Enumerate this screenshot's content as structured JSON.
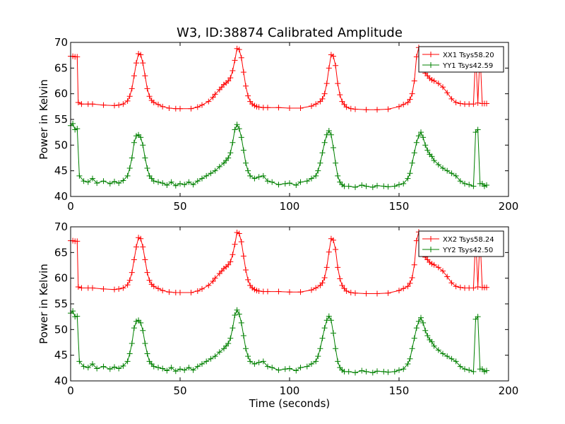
{
  "figure": {
    "title": "W3, ID:38874 Calibrated Amplitude"
  },
  "chart_data": [
    {
      "type": "line",
      "title": "W3, ID:38874 Calibrated Amplitude",
      "xlabel": "",
      "ylabel": "Power in Kelvin",
      "xlim": [
        0,
        200
      ],
      "ylim": [
        40,
        70
      ],
      "xticks": [
        "0",
        "50",
        "100",
        "150",
        "200"
      ],
      "yticks": [
        "40",
        "45",
        "50",
        "55",
        "60",
        "65",
        "70"
      ],
      "grid": false,
      "legend_position": "top-right",
      "marker": "+",
      "series": [
        {
          "name": "XX1 Tsys58.20",
          "color": "#ff0000",
          "x": [
            0,
            1,
            2,
            3,
            3.5,
            5,
            8,
            10,
            15,
            20,
            22,
            24,
            26,
            27,
            28,
            29,
            30,
            31,
            32,
            33,
            34,
            35,
            36,
            37,
            38,
            40,
            42,
            45,
            48,
            50,
            55,
            58,
            60,
            63,
            65,
            66,
            68,
            69,
            70,
            71,
            72,
            73,
            74,
            75,
            76,
            77,
            78,
            79,
            80,
            81,
            82,
            83,
            84,
            85,
            86,
            88,
            90,
            95,
            100,
            105,
            110,
            112,
            114,
            115,
            116,
            117,
            118,
            119,
            120,
            121,
            122,
            123,
            124,
            125,
            126,
            128,
            130,
            135,
            140,
            145,
            150,
            152,
            154,
            155,
            156,
            157,
            158,
            159,
            160,
            161,
            162,
            163,
            164,
            165,
            166,
            168,
            170,
            172,
            174,
            176,
            178,
            180,
            182,
            184,
            185,
            186,
            187,
            188,
            189,
            190
          ],
          "values": [
            67.3,
            67.3,
            67.2,
            67.2,
            58.3,
            58.0,
            58.0,
            58.0,
            57.8,
            57.7,
            57.8,
            58.0,
            58.6,
            59.5,
            61.0,
            63.5,
            66.0,
            67.8,
            67.6,
            66.0,
            63.5,
            61.0,
            59.5,
            58.7,
            58.3,
            57.9,
            57.5,
            57.2,
            57.1,
            57.1,
            57.1,
            57.4,
            57.8,
            58.5,
            59.3,
            59.9,
            60.8,
            61.3,
            61.8,
            62.1,
            62.5,
            63.1,
            64.5,
            66.5,
            68.8,
            68.6,
            67.0,
            64.2,
            61.5,
            59.6,
            58.5,
            58.0,
            57.7,
            57.5,
            57.4,
            57.3,
            57.3,
            57.3,
            57.2,
            57.2,
            57.6,
            58.0,
            58.5,
            59.0,
            60.0,
            62.0,
            65.0,
            67.6,
            67.3,
            65.5,
            62.0,
            59.8,
            58.5,
            57.9,
            57.4,
            57.1,
            57.0,
            56.9,
            56.9,
            57.0,
            57.5,
            57.9,
            58.3,
            58.9,
            60.0,
            62.5,
            67.2,
            69.0,
            67.5,
            65.2,
            64.0,
            63.5,
            63.0,
            62.7,
            62.5,
            62.0,
            61.3,
            60.2,
            59.0,
            58.3,
            58.1,
            58.0,
            58.0,
            58.0,
            68.0,
            58.2,
            68.0,
            58.1,
            58.1,
            58.1
          ]
        },
        {
          "name": "YY1 Tsys42.59",
          "color": "#008000",
          "x": [
            0,
            1,
            2,
            3,
            4,
            6,
            8,
            10,
            12,
            15,
            18,
            20,
            22,
            24,
            26,
            27,
            28,
            29,
            30,
            31,
            32,
            33,
            34,
            35,
            36,
            37,
            38,
            40,
            42,
            44,
            46,
            48,
            50,
            52,
            54,
            56,
            58,
            60,
            62,
            64,
            66,
            68,
            70,
            71,
            72,
            73,
            74,
            75,
            76,
            77,
            78,
            79,
            80,
            81,
            82,
            84,
            86,
            88,
            90,
            92,
            95,
            98,
            100,
            103,
            105,
            108,
            110,
            112,
            113,
            114,
            115,
            116,
            117,
            118,
            119,
            120,
            121,
            122,
            123,
            124,
            125,
            127,
            130,
            133,
            135,
            138,
            140,
            143,
            145,
            148,
            150,
            152,
            154,
            155,
            156,
            157,
            158,
            159,
            160,
            161,
            162,
            163,
            164,
            165,
            166,
            168,
            170,
            172,
            174,
            176,
            178,
            180,
            182,
            184,
            185,
            186,
            187,
            188,
            189,
            190
          ],
          "values": [
            53.8,
            54.2,
            53.0,
            53.2,
            44.0,
            43.0,
            42.8,
            43.5,
            42.6,
            43.0,
            42.5,
            42.9,
            42.6,
            43.1,
            44.0,
            45.5,
            47.5,
            50.5,
            51.8,
            52.0,
            51.5,
            50.0,
            47.5,
            45.5,
            44.0,
            43.5,
            43.0,
            42.8,
            42.6,
            42.2,
            42.8,
            42.1,
            42.5,
            42.3,
            42.8,
            42.3,
            43.0,
            43.5,
            44.0,
            44.5,
            45.0,
            45.8,
            46.5,
            47.0,
            47.5,
            48.5,
            50.5,
            53.0,
            54.0,
            53.2,
            51.5,
            49.0,
            46.5,
            45.0,
            44.0,
            43.5,
            43.8,
            44.0,
            43.0,
            42.8,
            42.3,
            42.5,
            42.6,
            42.2,
            42.8,
            43.0,
            43.5,
            44.0,
            45.0,
            46.5,
            48.5,
            50.5,
            52.0,
            52.8,
            52.0,
            49.5,
            46.5,
            44.0,
            42.8,
            42.3,
            42.0,
            42.0,
            41.8,
            42.2,
            42.0,
            41.8,
            42.1,
            42.0,
            41.9,
            42.0,
            42.3,
            42.5,
            43.5,
            44.5,
            46.5,
            48.5,
            50.5,
            51.8,
            52.5,
            51.5,
            50.0,
            49.0,
            48.2,
            47.8,
            47.0,
            46.2,
            45.5,
            45.0,
            44.5,
            44.0,
            43.0,
            42.5,
            42.3,
            42.0,
            52.5,
            53.0,
            42.5,
            42.5,
            42.0,
            42.2
          ]
        }
      ]
    },
    {
      "type": "line",
      "title": "",
      "xlabel": "Time (seconds)",
      "ylabel": "Power in Kelvin",
      "xlim": [
        0,
        200
      ],
      "ylim": [
        40,
        70
      ],
      "xticks": [
        "0",
        "50",
        "100",
        "150",
        "200"
      ],
      "yticks": [
        "40",
        "45",
        "50",
        "55",
        "60",
        "65",
        "70"
      ],
      "grid": false,
      "legend_position": "top-right",
      "marker": "+",
      "series": [
        {
          "name": "XX2 Tsys58.24",
          "color": "#ff0000",
          "x": [
            0,
            1,
            2,
            3,
            3.5,
            5,
            8,
            10,
            15,
            20,
            22,
            24,
            26,
            27,
            28,
            29,
            30,
            31,
            32,
            33,
            34,
            35,
            36,
            37,
            38,
            40,
            42,
            45,
            48,
            50,
            55,
            58,
            60,
            63,
            65,
            66,
            68,
            69,
            70,
            71,
            72,
            73,
            74,
            75,
            76,
            77,
            78,
            79,
            80,
            81,
            82,
            83,
            84,
            85,
            86,
            88,
            90,
            95,
            100,
            105,
            110,
            112,
            114,
            115,
            116,
            117,
            118,
            119,
            120,
            121,
            122,
            123,
            124,
            125,
            126,
            128,
            130,
            135,
            140,
            145,
            150,
            152,
            154,
            155,
            156,
            157,
            158,
            159,
            160,
            161,
            162,
            163,
            164,
            165,
            166,
            168,
            170,
            172,
            174,
            176,
            178,
            180,
            182,
            184,
            185,
            186,
            187,
            188,
            189,
            190
          ],
          "values": [
            67.3,
            67.3,
            67.2,
            67.2,
            58.3,
            58.1,
            58.1,
            58.1,
            57.9,
            57.8,
            57.9,
            58.1,
            58.7,
            59.6,
            61.1,
            63.6,
            66.1,
            67.9,
            67.7,
            66.1,
            63.6,
            61.1,
            59.6,
            58.8,
            58.4,
            58.0,
            57.6,
            57.3,
            57.2,
            57.2,
            57.2,
            57.5,
            57.9,
            58.6,
            59.4,
            60.0,
            60.9,
            61.4,
            61.9,
            62.2,
            62.6,
            63.2,
            64.6,
            66.6,
            68.9,
            68.7,
            67.1,
            64.3,
            61.6,
            59.7,
            58.6,
            58.1,
            57.8,
            57.6,
            57.5,
            57.4,
            57.4,
            57.4,
            57.3,
            57.3,
            57.7,
            58.1,
            58.6,
            59.1,
            60.1,
            62.1,
            65.1,
            67.7,
            67.4,
            65.6,
            62.1,
            59.9,
            58.6,
            58.0,
            57.5,
            57.2,
            57.1,
            57.0,
            57.0,
            57.1,
            57.6,
            58.0,
            58.4,
            59.0,
            60.1,
            62.6,
            67.3,
            69.0,
            67.6,
            65.3,
            64.1,
            63.6,
            63.1,
            62.8,
            62.6,
            62.1,
            61.4,
            60.3,
            59.1,
            58.4,
            58.2,
            58.1,
            58.1,
            58.1,
            68.1,
            58.3,
            68.1,
            58.2,
            58.2,
            58.2
          ]
        },
        {
          "name": "YY2 Tsys42.50",
          "color": "#008000",
          "x": [
            0,
            1,
            2,
            3,
            4,
            6,
            8,
            10,
            12,
            15,
            18,
            20,
            22,
            24,
            26,
            27,
            28,
            29,
            30,
            31,
            32,
            33,
            34,
            35,
            36,
            37,
            38,
            40,
            42,
            44,
            46,
            48,
            50,
            52,
            54,
            56,
            58,
            60,
            62,
            64,
            66,
            68,
            70,
            71,
            72,
            73,
            74,
            75,
            76,
            77,
            78,
            79,
            80,
            81,
            82,
            84,
            86,
            88,
            90,
            92,
            95,
            98,
            100,
            103,
            105,
            108,
            110,
            112,
            113,
            114,
            115,
            116,
            117,
            118,
            119,
            120,
            121,
            122,
            123,
            124,
            125,
            127,
            130,
            133,
            135,
            138,
            140,
            143,
            145,
            148,
            150,
            152,
            154,
            155,
            156,
            157,
            158,
            159,
            160,
            161,
            162,
            163,
            164,
            165,
            166,
            168,
            170,
            172,
            174,
            176,
            178,
            180,
            182,
            184,
            185,
            186,
            187,
            188,
            189,
            190
          ],
          "values": [
            53.2,
            53.6,
            52.5,
            52.6,
            43.8,
            42.8,
            42.6,
            43.3,
            42.4,
            42.8,
            42.3,
            42.7,
            42.4,
            42.9,
            43.8,
            45.3,
            47.3,
            50.3,
            51.6,
            51.8,
            51.3,
            49.8,
            47.3,
            45.3,
            43.8,
            43.3,
            42.8,
            42.6,
            42.4,
            42.0,
            42.6,
            41.9,
            42.3,
            42.1,
            42.6,
            42.1,
            42.8,
            43.3,
            43.8,
            44.3,
            44.8,
            45.6,
            46.3,
            46.8,
            47.3,
            48.3,
            50.3,
            52.8,
            53.8,
            53.0,
            51.3,
            48.8,
            46.3,
            44.8,
            43.8,
            43.3,
            43.6,
            43.8,
            42.8,
            42.6,
            42.1,
            42.3,
            42.4,
            42.0,
            42.6,
            42.8,
            43.3,
            43.8,
            44.8,
            46.3,
            48.3,
            50.3,
            51.8,
            52.6,
            51.8,
            49.3,
            46.3,
            43.8,
            42.6,
            42.1,
            41.8,
            41.8,
            41.6,
            42.0,
            41.8,
            41.6,
            41.9,
            41.8,
            41.7,
            41.8,
            42.1,
            42.3,
            43.3,
            44.3,
            46.3,
            48.3,
            50.3,
            51.6,
            52.3,
            51.3,
            49.8,
            48.8,
            48.0,
            47.6,
            46.8,
            46.0,
            45.3,
            44.8,
            44.3,
            43.8,
            42.8,
            42.3,
            42.1,
            41.8,
            52.0,
            52.5,
            42.3,
            42.3,
            41.8,
            42.0
          ]
        }
      ]
    }
  ]
}
